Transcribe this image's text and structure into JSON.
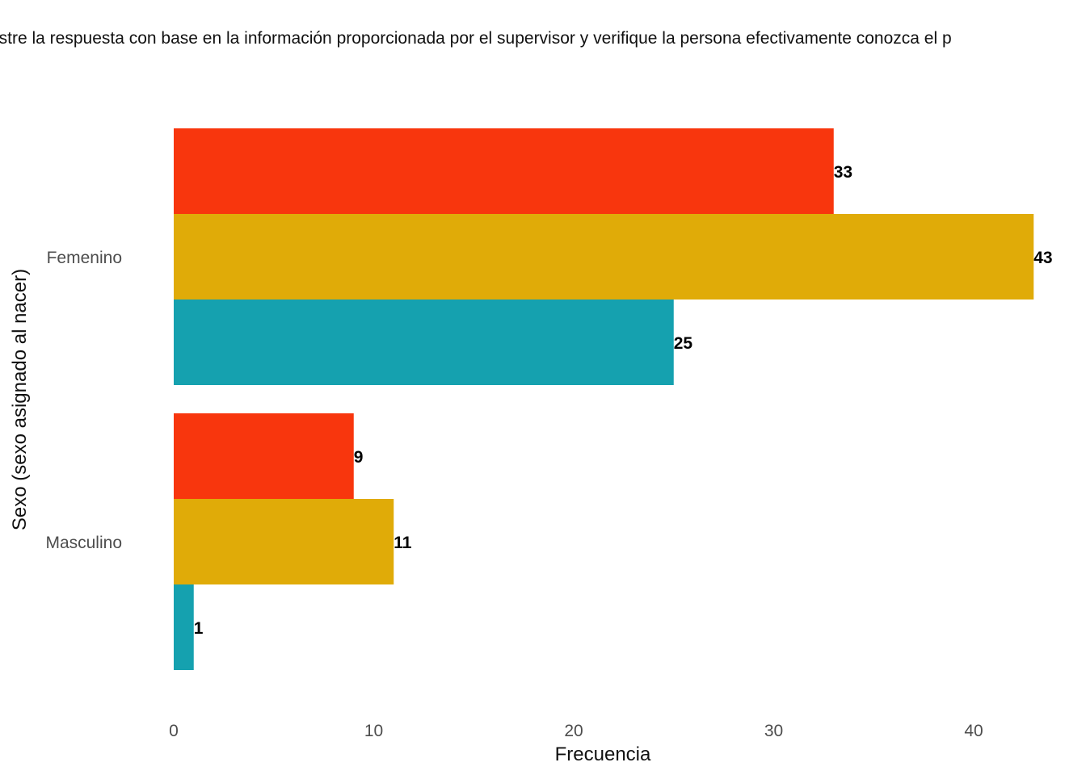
{
  "chart_data": {
    "type": "bar",
    "orientation": "horizontal",
    "title": "istre la respuesta con base en la información proporcionada por el supervisor y verifique la persona efectivamente conozca el p",
    "xlabel": "Frecuencia",
    "ylabel": "Sexo (sexo asignado al nacer)",
    "categories": [
      "Femenino",
      "Masculino"
    ],
    "series": [
      {
        "color": "#F8360D",
        "values": [
          33,
          9
        ]
      },
      {
        "color": "#E0AB08",
        "values": [
          43,
          11
        ]
      },
      {
        "color": "#15A1AF",
        "values": [
          25,
          1
        ]
      }
    ],
    "xlim": [
      0,
      43
    ],
    "xticks": [
      0,
      10,
      20,
      30,
      40
    ],
    "grid": false,
    "legend": "none"
  }
}
